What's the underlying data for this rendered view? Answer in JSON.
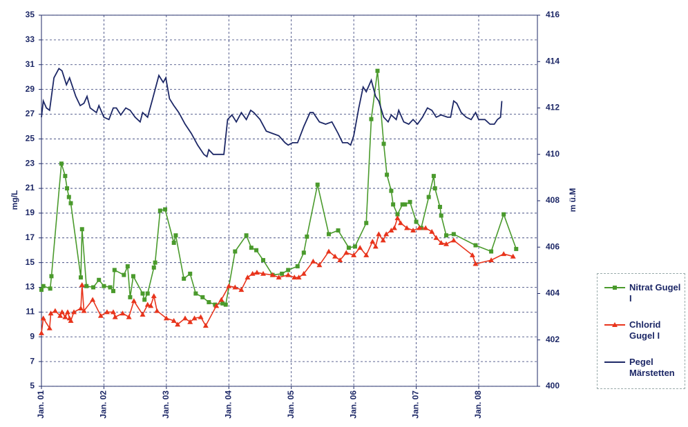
{
  "chart_data": {
    "type": "line",
    "y_label": "mg/L",
    "y2_label": "m ü.M",
    "xlim": [
      2001,
      2008.94
    ],
    "xticks": [
      {
        "value": 2001,
        "label": "Jan. 01"
      },
      {
        "value": 2002,
        "label": "Jan. 02"
      },
      {
        "value": 2003,
        "label": "Jan. 03"
      },
      {
        "value": 2004,
        "label": "Jan. 04"
      },
      {
        "value": 2005,
        "label": "Jan. 05"
      },
      {
        "value": 2006,
        "label": "Jan. 06"
      },
      {
        "value": 2007,
        "label": "Jan. 07"
      },
      {
        "value": 2008,
        "label": "Jan. 08"
      }
    ],
    "ylim": [
      5,
      35
    ],
    "yticks": [
      5,
      7,
      9,
      11,
      13,
      15,
      17,
      19,
      21,
      23,
      25,
      27,
      29,
      31,
      33,
      35
    ],
    "y2lim": [
      400,
      416
    ],
    "y2ticks": [
      400,
      402,
      404,
      406,
      408,
      410,
      412,
      414,
      416
    ],
    "grid": true,
    "series": [
      {
        "name": "Nitrat Gugel I",
        "color": "#4a9a2c",
        "marker": "square",
        "x": [
          2001.0,
          2001.03,
          2001.14,
          2001.16,
          2001.32,
          2001.38,
          2001.41,
          2001.44,
          2001.47,
          2001.63,
          2001.65,
          2001.72,
          2001.83,
          2001.92,
          2002.0,
          2002.1,
          2002.15,
          2002.17,
          2002.32,
          2002.38,
          2002.42,
          2002.47,
          2002.62,
          2002.65,
          2002.7,
          2002.8,
          2002.82,
          2002.9,
          2002.98,
          2003.12,
          2003.15,
          2003.28,
          2003.38,
          2003.47,
          2003.58,
          2003.68,
          2003.78,
          2003.9,
          2003.95,
          2004.1,
          2004.28,
          2004.36,
          2004.44,
          2004.55,
          2004.7,
          2004.85,
          2004.95,
          2005.1,
          2005.2,
          2005.25,
          2005.42,
          2005.6,
          2005.75,
          2005.92,
          2006.02,
          2006.2,
          2006.28,
          2006.38,
          2006.48,
          2006.53,
          2006.6,
          2006.63,
          2006.7,
          2006.78,
          2006.82,
          2006.9,
          2007.0,
          2007.08,
          2007.2,
          2007.28,
          2007.3,
          2007.38,
          2007.4,
          2007.48,
          2007.6,
          2007.95,
          2008.2,
          2008.4,
          2008.6
        ],
        "values": [
          12.8,
          13.1,
          12.9,
          13.9,
          23.0,
          22.0,
          21.0,
          20.3,
          19.8,
          13.8,
          17.7,
          13.1,
          13.0,
          13.6,
          13.1,
          13.0,
          12.7,
          14.4,
          14.0,
          14.7,
          12.2,
          13.9,
          12.5,
          12.0,
          12.5,
          14.6,
          15.0,
          19.2,
          19.3,
          16.6,
          17.2,
          13.7,
          14.1,
          12.5,
          12.2,
          11.8,
          11.6,
          11.7,
          11.6,
          15.9,
          17.2,
          16.2,
          16.0,
          15.2,
          14.0,
          14.1,
          14.4,
          14.7,
          15.8,
          17.1,
          21.3,
          17.3,
          17.6,
          16.2,
          16.3,
          18.2,
          26.6,
          30.5,
          24.6,
          22.1,
          20.8,
          19.7,
          18.9,
          19.7,
          19.7,
          19.9,
          18.3,
          17.8,
          20.3,
          22.0,
          21.0,
          19.5,
          18.8,
          17.2,
          17.3,
          16.4,
          15.9,
          18.9,
          16.1
        ]
      },
      {
        "name": "Chlorid Gugel I",
        "color": "#e8341c",
        "marker": "triangle",
        "x": [
          2001.0,
          2001.03,
          2001.13,
          2001.15,
          2001.22,
          2001.3,
          2001.33,
          2001.38,
          2001.42,
          2001.45,
          2001.47,
          2001.52,
          2001.63,
          2001.65,
          2001.68,
          2001.82,
          2001.95,
          2002.05,
          2002.15,
          2002.18,
          2002.3,
          2002.4,
          2002.48,
          2002.62,
          2002.7,
          2002.75,
          2002.8,
          2002.85,
          2003.0,
          2003.12,
          2003.18,
          2003.3,
          2003.38,
          2003.45,
          2003.55,
          2003.63,
          2003.8,
          2003.88,
          2004.0,
          2004.1,
          2004.2,
          2004.3,
          2004.38,
          2004.45,
          2004.55,
          2004.7,
          2004.8,
          2004.95,
          2005.05,
          2005.12,
          2005.2,
          2005.35,
          2005.45,
          2005.6,
          2005.7,
          2005.78,
          2005.88,
          2006.0,
          2006.1,
          2006.2,
          2006.3,
          2006.35,
          2006.4,
          2006.47,
          2006.52,
          2006.6,
          2006.65,
          2006.7,
          2006.75,
          2006.85,
          2006.95,
          2007.05,
          2007.15,
          2007.25,
          2007.32,
          2007.4,
          2007.48,
          2007.6,
          2007.9,
          2007.95,
          2008.2,
          2008.4,
          2008.55
        ],
        "values": [
          9.3,
          10.5,
          9.7,
          10.9,
          11.1,
          10.7,
          11.0,
          10.6,
          11.0,
          10.5,
          10.3,
          11.0,
          11.3,
          13.2,
          11.1,
          12.0,
          10.7,
          11.0,
          11.0,
          10.6,
          10.9,
          10.6,
          11.9,
          10.8,
          11.6,
          11.5,
          12.3,
          11.1,
          10.5,
          10.3,
          10.0,
          10.5,
          10.2,
          10.5,
          10.6,
          9.9,
          11.5,
          12.0,
          13.1,
          13.0,
          12.8,
          13.8,
          14.1,
          14.2,
          14.1,
          14.0,
          13.8,
          14.0,
          13.8,
          13.8,
          14.1,
          15.1,
          14.8,
          15.9,
          15.5,
          15.2,
          15.8,
          15.6,
          16.2,
          15.6,
          16.7,
          16.3,
          17.3,
          16.8,
          17.3,
          17.6,
          17.8,
          18.6,
          18.2,
          17.8,
          17.6,
          17.8,
          17.8,
          17.5,
          17.0,
          16.6,
          16.5,
          16.8,
          15.6,
          14.9,
          15.2,
          15.7,
          15.5
        ]
      },
      {
        "name": "Pegel Märstetten",
        "color": "#1c2766",
        "axis": "y2",
        "x": [
          2001.0,
          2001.03,
          2001.08,
          2001.13,
          2001.2,
          2001.28,
          2001.33,
          2001.4,
          2001.45,
          2001.55,
          2001.62,
          2001.68,
          2001.73,
          2001.78,
          2001.88,
          2001.92,
          2002.0,
          2002.08,
          2002.15,
          2002.2,
          2002.27,
          2002.35,
          2002.42,
          2002.5,
          2002.58,
          2002.62,
          2002.7,
          2002.78,
          2002.88,
          2002.95,
          2002.99,
          2003.05,
          2003.12,
          2003.2,
          2003.3,
          2003.4,
          2003.5,
          2003.6,
          2003.65,
          2003.68,
          2003.75,
          2003.85,
          2003.92,
          2003.98,
          2004.05,
          2004.12,
          2004.2,
          2004.28,
          2004.35,
          2004.4,
          2004.5,
          2004.6,
          2004.7,
          2004.8,
          2004.9,
          2004.95,
          2005.02,
          2005.1,
          2005.2,
          2005.3,
          2005.35,
          2005.45,
          2005.55,
          2005.65,
          2005.75,
          2005.82,
          2005.9,
          2005.95,
          2006.0,
          2006.08,
          2006.15,
          2006.2,
          2006.28,
          2006.35,
          2006.4,
          2006.48,
          2006.55,
          2006.6,
          2006.68,
          2006.72,
          2006.8,
          2006.88,
          2006.95,
          2007.02,
          2007.1,
          2007.18,
          2007.25,
          2007.32,
          2007.4,
          2007.5,
          2007.55,
          2007.6,
          2007.65,
          2007.72,
          2007.8,
          2007.88,
          2007.95,
          2008.0,
          2008.1,
          2008.18,
          2008.25,
          2008.3,
          2008.35,
          2008.37
        ],
        "values": [
          411.6,
          412.3,
          412.0,
          411.9,
          413.3,
          413.7,
          413.6,
          413.0,
          413.3,
          412.5,
          412.1,
          412.2,
          412.5,
          412.0,
          411.8,
          412.1,
          411.6,
          411.5,
          412.0,
          412.0,
          411.7,
          412.0,
          411.9,
          411.6,
          411.4,
          411.8,
          411.6,
          412.4,
          413.4,
          413.1,
          413.3,
          412.4,
          412.1,
          411.8,
          411.3,
          410.9,
          410.4,
          410.0,
          409.9,
          410.2,
          410.0,
          410.0,
          410.0,
          411.5,
          411.7,
          411.4,
          411.8,
          411.5,
          411.9,
          411.8,
          411.5,
          411.0,
          410.9,
          410.8,
          410.5,
          410.4,
          410.5,
          410.5,
          411.2,
          411.8,
          411.8,
          411.4,
          411.3,
          411.4,
          410.9,
          410.5,
          410.5,
          410.4,
          410.8,
          412.0,
          412.9,
          412.7,
          413.2,
          412.5,
          412.3,
          411.6,
          411.4,
          411.7,
          411.5,
          411.9,
          411.4,
          411.3,
          411.5,
          411.3,
          411.6,
          412.0,
          411.9,
          411.6,
          411.7,
          411.6,
          411.6,
          412.3,
          412.2,
          411.8,
          411.6,
          411.5,
          411.8,
          411.5,
          411.5,
          411.3,
          411.3,
          411.5,
          411.6,
          412.3
        ]
      }
    ]
  }
}
